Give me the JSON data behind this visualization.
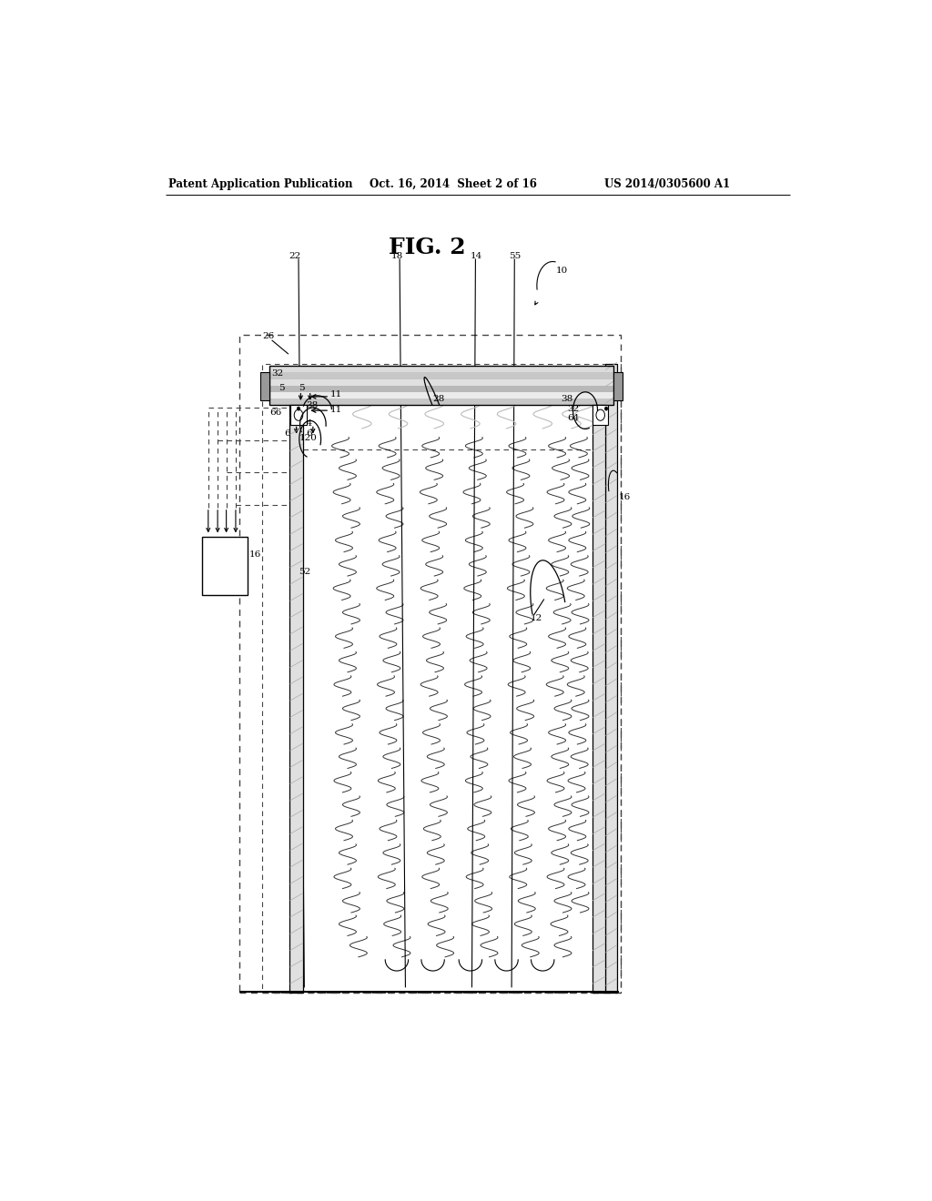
{
  "bg_color": "#ffffff",
  "header_text1": "Patent Application Publication",
  "header_text2": "Oct. 16, 2014  Sheet 2 of 16",
  "header_text3": "US 2014/0305600 A1",
  "fig_label": "FIG. 2",
  "label_fs": 7.5,
  "header_fs": 8.5,
  "fig_fs": 18
}
